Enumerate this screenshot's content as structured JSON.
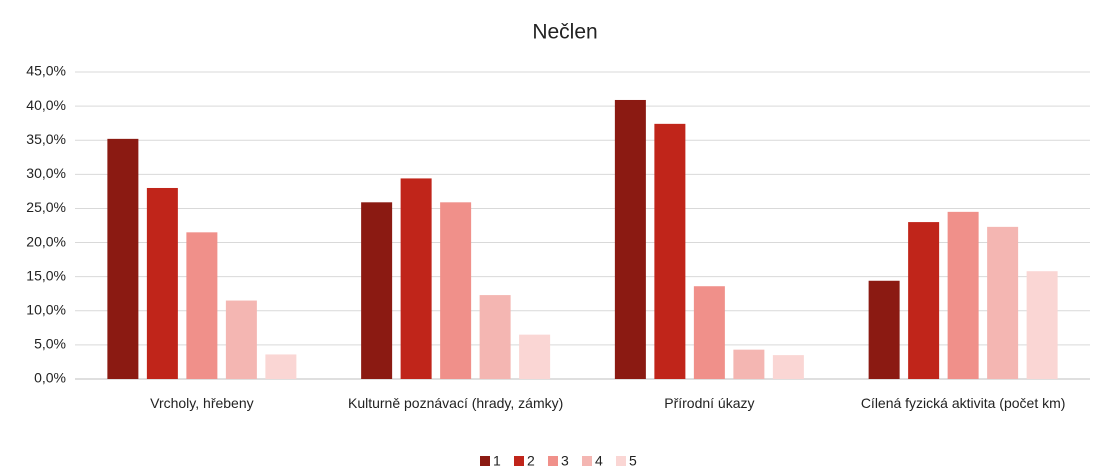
{
  "chart_data": {
    "type": "bar",
    "title": "Nečlen",
    "categories": [
      "Vrcholy, hřebeny",
      "Kulturně poznávací (hrady, zámky)",
      "Přírodní úkazy",
      "Cílená fyzická aktivita (počet km)"
    ],
    "series": [
      {
        "name": "1",
        "color": "#8b1a12",
        "values": [
          35.2,
          25.9,
          40.9,
          14.4
        ]
      },
      {
        "name": "2",
        "color": "#c0251a",
        "values": [
          28.0,
          29.4,
          37.4,
          23.0
        ]
      },
      {
        "name": "3",
        "color": "#f0908a",
        "values": [
          21.5,
          25.9,
          13.6,
          24.5
        ]
      },
      {
        "name": "4",
        "color": "#f4b6b2",
        "values": [
          11.5,
          12.3,
          4.3,
          22.3
        ]
      },
      {
        "name": "5",
        "color": "#fad6d4",
        "values": [
          3.6,
          6.5,
          3.5,
          15.8
        ]
      }
    ],
    "ylim": [
      0,
      45
    ],
    "yticks": [
      {
        "value": 0,
        "label": "0,0%"
      },
      {
        "value": 5,
        "label": "5,0%"
      },
      {
        "value": 10,
        "label": "10,0%"
      },
      {
        "value": 15,
        "label": "15,0%"
      },
      {
        "value": 20,
        "label": "20,0%"
      },
      {
        "value": 25,
        "label": "25,0%"
      },
      {
        "value": 30,
        "label": "30,0%"
      },
      {
        "value": 35,
        "label": "35,0%"
      },
      {
        "value": 40,
        "label": "40,0%"
      },
      {
        "value": 45,
        "label": "45,0%"
      }
    ],
    "grid": true,
    "legend": "bottom"
  }
}
